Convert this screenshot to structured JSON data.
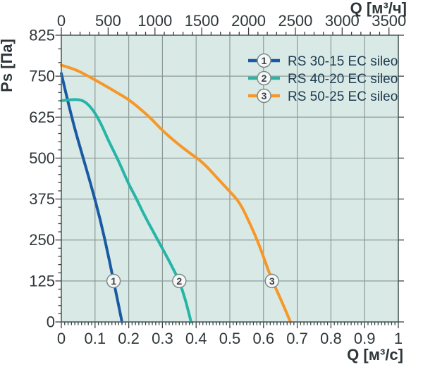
{
  "colors": {
    "plot_bg": "#d9eae6",
    "grid": "#8c9996",
    "border": "#5f6e6c",
    "tick": "#3a4245",
    "text": "#2e3639",
    "legend_text": "#1d3b50",
    "marker_fill": "#f5f8f7",
    "marker_stroke": "#7e8a8a"
  },
  "chart_data": {
    "type": "line",
    "grid": true,
    "legend_position": "top-right-inside",
    "x_axis": {
      "label": "Q [м³/с]",
      "range": [
        0,
        1.0
      ],
      "ticks": [
        0,
        0.1,
        0.2,
        0.3,
        0.4,
        0.5,
        0.6,
        0.7,
        0.8,
        0.9,
        1
      ],
      "minor_step": 0.01
    },
    "x_axis_secondary": {
      "label": "Q [м³/ч]",
      "range": [
        0,
        3600
      ],
      "ticks": [
        0,
        500,
        1000,
        1500,
        2000,
        2500,
        3000,
        3500
      ],
      "minor_step": 100
    },
    "y_axis": {
      "label": "Ps [Па]",
      "range": [
        0,
        825
      ],
      "ticks": [
        825,
        750,
        625,
        500,
        375,
        250,
        125,
        0
      ],
      "major_step": 125,
      "minor_step": 25
    },
    "series": [
      {
        "name": "RS 30-15 EC sileo",
        "marker": "1",
        "color": "#1a5aa2",
        "points": [
          [
            0,
            755
          ],
          [
            0.03,
            625
          ],
          [
            0.065,
            500
          ],
          [
            0.1,
            375
          ],
          [
            0.13,
            250
          ],
          [
            0.155,
            125
          ],
          [
            0.18,
            0
          ]
        ]
      },
      {
        "name": "RS 40-20 EC sileo",
        "marker": "2",
        "color": "#26b5a6",
        "points": [
          [
            0,
            675
          ],
          [
            0.03,
            679
          ],
          [
            0.06,
            678
          ],
          [
            0.08,
            664
          ],
          [
            0.1,
            638
          ],
          [
            0.12,
            600
          ],
          [
            0.14,
            553
          ],
          [
            0.16,
            512
          ],
          [
            0.18,
            468
          ],
          [
            0.2,
            420
          ],
          [
            0.22,
            382
          ],
          [
            0.25,
            318
          ],
          [
            0.28,
            262
          ],
          [
            0.31,
            205
          ],
          [
            0.33,
            166
          ],
          [
            0.35,
            125
          ],
          [
            0.37,
            62
          ],
          [
            0.385,
            0
          ]
        ]
      },
      {
        "name": "RS 50-25 EC sileo",
        "marker": "3",
        "color": "#f79727",
        "points": [
          [
            0,
            770
          ],
          [
            0.04,
            763
          ],
          [
            0.08,
            750
          ],
          [
            0.12,
            727
          ],
          [
            0.16,
            703
          ],
          [
            0.2,
            679
          ],
          [
            0.24,
            645
          ],
          [
            0.27,
            617
          ],
          [
            0.3,
            584
          ],
          [
            0.34,
            548
          ],
          [
            0.38,
            516
          ],
          [
            0.42,
            487
          ],
          [
            0.46,
            442
          ],
          [
            0.5,
            398
          ],
          [
            0.53,
            364
          ],
          [
            0.56,
            300
          ],
          [
            0.59,
            228
          ],
          [
            0.62,
            140
          ],
          [
            0.65,
            72
          ],
          [
            0.68,
            0
          ]
        ]
      }
    ],
    "curve_markers": [
      {
        "label": "1",
        "series": 0,
        "q": 0.155,
        "ps": 125
      },
      {
        "label": "2",
        "series": 1,
        "q": 0.35,
        "ps": 125
      },
      {
        "label": "3",
        "series": 2,
        "q": 0.625,
        "ps": 125
      }
    ]
  }
}
